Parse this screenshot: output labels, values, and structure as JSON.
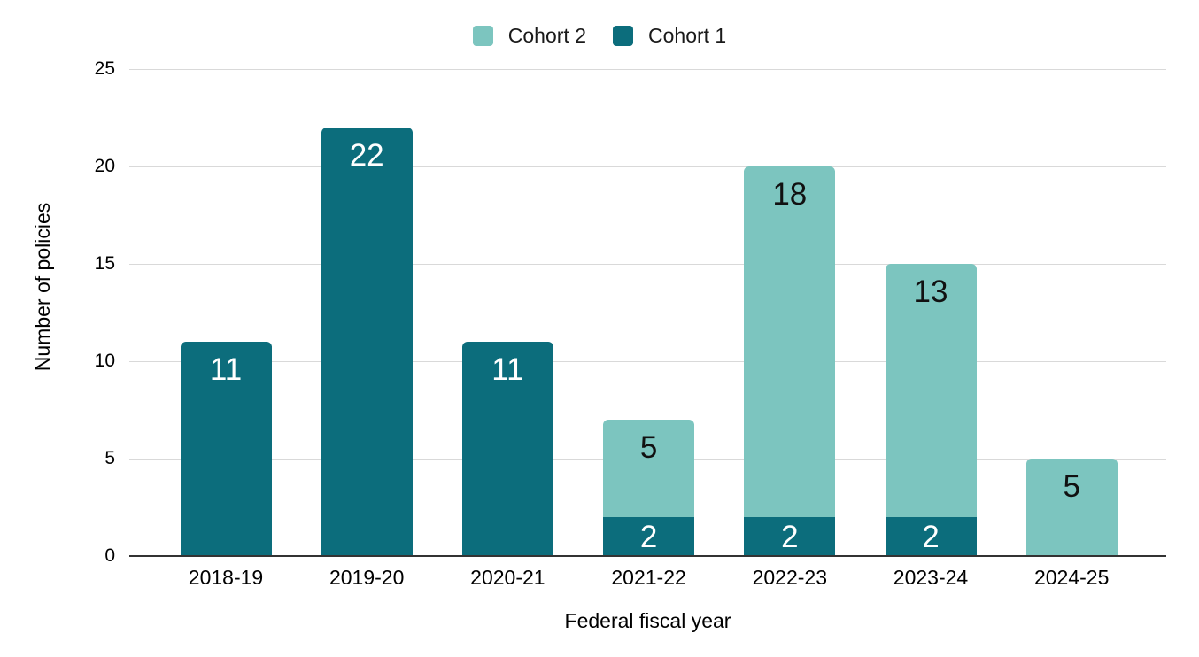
{
  "chart_data": {
    "type": "bar",
    "stacked": true,
    "title": "",
    "xlabel": "Federal fiscal year",
    "ylabel": "Number of policies",
    "categories": [
      "2018-19",
      "2019-20",
      "2020-21",
      "2021-22",
      "2022-23",
      "2023-24",
      "2024-25"
    ],
    "series": [
      {
        "name": "Cohort 1",
        "color": "#0c6d7c",
        "label_color": "#ffffff",
        "values": [
          11,
          22,
          11,
          2,
          2,
          2,
          0
        ]
      },
      {
        "name": "Cohort 2",
        "color": "#7cc5bf",
        "label_color": "#111111",
        "values": [
          0,
          0,
          0,
          5,
          18,
          13,
          5
        ]
      }
    ],
    "stack_totals": [
      11,
      22,
      11,
      7,
      20,
      15,
      5
    ],
    "legend": [
      {
        "label": "Cohort 2",
        "color": "#7cc5bf"
      },
      {
        "label": "Cohort 1",
        "color": "#0c6d7c"
      }
    ],
    "legend_position": "top",
    "y_ticks": [
      0,
      5,
      10,
      15,
      20,
      25
    ],
    "ylim": [
      0,
      25
    ],
    "grid": true,
    "colors": {
      "gridline": "#d9d9d9",
      "baseline": "#333333",
      "text": "#000000",
      "background": "#ffffff"
    }
  }
}
